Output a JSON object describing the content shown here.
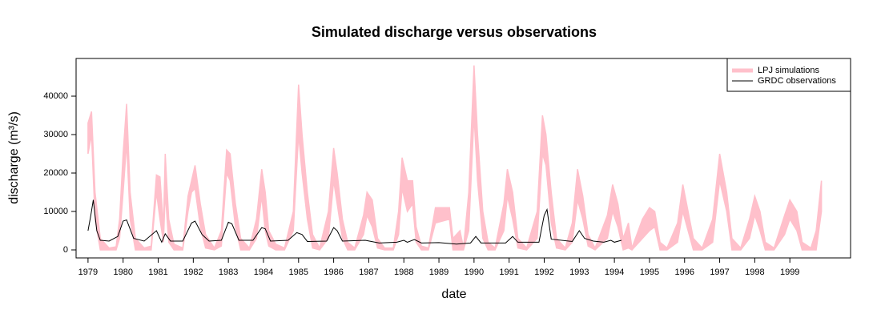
{
  "chart_data": {
    "type": "band_line",
    "title": "Simulated discharge versus observations",
    "xlabel": "date",
    "ylabel": "discharge (m³/s)",
    "xlim": [
      1978.66,
      2000.73
    ],
    "ylim": [
      -2083,
      49800
    ],
    "xticks": [
      1979,
      1980,
      1981,
      1982,
      1983,
      1984,
      1985,
      1986,
      1987,
      1988,
      1989,
      1990,
      1991,
      1992,
      1993,
      1994,
      1995,
      1996,
      1997,
      1998,
      1999
    ],
    "yticks": [
      0,
      10000,
      20000,
      30000,
      40000
    ],
    "legend": "top-right",
    "series": [
      {
        "name": "LPJ simulations",
        "color": "#ffc0cb",
        "x": [
          1979.0,
          1979.1,
          1979.2,
          1979.35,
          1979.6,
          1979.8,
          1979.9,
          1980.0,
          1980.1,
          1980.2,
          1980.35,
          1980.6,
          1980.8,
          1980.95,
          1981.05,
          1981.15,
          1981.2,
          1981.3,
          1981.45,
          1981.7,
          1981.85,
          1981.95,
          1982.05,
          1982.2,
          1982.35,
          1982.6,
          1982.8,
          1982.95,
          1983.05,
          1983.2,
          1983.35,
          1983.6,
          1983.8,
          1983.95,
          1984.05,
          1984.15,
          1984.35,
          1984.6,
          1984.85,
          1985.0,
          1985.1,
          1985.25,
          1985.4,
          1985.6,
          1985.85,
          1986.0,
          1986.1,
          1986.25,
          1986.4,
          1986.6,
          1986.85,
          1986.95,
          1987.1,
          1987.25,
          1987.45,
          1987.7,
          1987.85,
          1987.95,
          1988.1,
          1988.25,
          1988.35,
          1988.5,
          1988.7,
          1988.9,
          1989.3,
          1989.4,
          1989.6,
          1989.7,
          1989.85,
          1990.0,
          1990.1,
          1990.25,
          1990.4,
          1990.6,
          1990.85,
          1990.95,
          1991.1,
          1991.25,
          1991.5,
          1991.8,
          1991.95,
          1992.05,
          1992.2,
          1992.35,
          1992.6,
          1992.8,
          1992.95,
          1993.1,
          1993.25,
          1993.45,
          1993.8,
          1993.95,
          1994.1,
          1994.25,
          1994.4,
          1994.5,
          1994.8,
          1995.0,
          1995.15,
          1995.3,
          1995.5,
          1995.8,
          1995.95,
          1996.1,
          1996.25,
          1996.5,
          1996.8,
          1997.0,
          1997.2,
          1997.35,
          1997.6,
          1997.85,
          1998.0,
          1998.15,
          1998.3,
          1998.55,
          1998.85,
          1999.0,
          1999.2,
          1999.35,
          1999.6,
          1999.75,
          1999.9
        ],
        "values": [
          33000,
          36000,
          15000,
          3000,
          500,
          800,
          8000,
          25000,
          38000,
          15000,
          3000,
          500,
          1000,
          19500,
          19000,
          6000,
          25000,
          8000,
          1500,
          500,
          14000,
          18000,
          22000,
          12000,
          4000,
          500,
          5000,
          26000,
          25000,
          12000,
          3000,
          500,
          8000,
          21000,
          15000,
          5000,
          1500,
          500,
          10000,
          43000,
          30000,
          15000,
          4000,
          500,
          10000,
          26500,
          20000,
          8000,
          2000,
          500,
          9000,
          15000,
          13000,
          3000,
          500,
          500,
          10000,
          24000,
          18000,
          18000,
          6000,
          1000,
          500,
          11000,
          11000,
          3000,
          5000,
          500,
          15000,
          48000,
          30000,
          10000,
          2000,
          500,
          12000,
          21000,
          15000,
          3000,
          500,
          10000,
          35000,
          30000,
          15000,
          3000,
          500,
          7000,
          21000,
          14000,
          4000,
          500,
          9000,
          17000,
          12000,
          3000,
          7000,
          500,
          8000,
          11000,
          10000,
          2000,
          500,
          7000,
          17000,
          10000,
          3000,
          500,
          8000,
          25000,
          15000,
          3000,
          500,
          8000,
          14000,
          10000,
          2000,
          500,
          9000,
          13000,
          10000,
          2000,
          500,
          5000,
          18000
        ],
        "lower": [
          25000,
          30000,
          8000,
          0,
          0,
          0,
          3000,
          15000,
          28000,
          8000,
          0,
          0,
          0,
          15000,
          8000,
          2000,
          15000,
          2000,
          0,
          0,
          10000,
          15000,
          16000,
          6000,
          500,
          0,
          1000,
          20000,
          18000,
          6000,
          0,
          0,
          3000,
          14000,
          5000,
          1000,
          0,
          0,
          5000,
          30000,
          20000,
          8000,
          500,
          0,
          3000,
          18000,
          12000,
          3000,
          0,
          0,
          4000,
          9000,
          6000,
          500,
          0,
          0,
          4000,
          16000,
          10000,
          12000,
          2000,
          0,
          0,
          7000,
          8000,
          0,
          0,
          0,
          5000,
          35000,
          18000,
          3000,
          0,
          0,
          5000,
          14000,
          8000,
          500,
          0,
          3000,
          25000,
          22000,
          7000,
          500,
          0,
          2000,
          13000,
          8000,
          1000,
          0,
          3000,
          10000,
          6000,
          0,
          500,
          0,
          3000,
          5000,
          6000,
          0,
          0,
          2000,
          10000,
          5000,
          0,
          0,
          2000,
          18000,
          10000,
          0,
          0,
          3000,
          9000,
          5000,
          0,
          0,
          4000,
          8000,
          5000,
          0,
          0,
          0,
          10000
        ]
      },
      {
        "name": "GRDC observations",
        "color": "#000000",
        "x": [
          1979.0,
          1979.08,
          1979.15,
          1979.25,
          1979.35,
          1979.6,
          1979.85,
          1980.0,
          1980.1,
          1980.3,
          1980.6,
          1980.95,
          1981.1,
          1981.2,
          1981.35,
          1981.7,
          1981.95,
          1982.05,
          1982.25,
          1982.45,
          1982.8,
          1983.0,
          1983.1,
          1983.3,
          1983.7,
          1983.95,
          1984.05,
          1984.2,
          1984.7,
          1984.95,
          1985.1,
          1985.25,
          1985.8,
          1986.0,
          1986.1,
          1986.25,
          1986.9,
          1987.3,
          1987.8,
          1988.0,
          1988.1,
          1988.3,
          1988.5,
          1989.0,
          1989.5,
          1989.9,
          1990.05,
          1990.2,
          1990.9,
          1991.1,
          1991.25,
          1991.85,
          1992.0,
          1992.08,
          1992.2,
          1992.8,
          1993.0,
          1993.15,
          1993.4,
          1993.7,
          1993.9,
          1994.0,
          1994.2
        ],
        "values": [
          5000,
          9000,
          13000,
          5000,
          2500,
          2300,
          3500,
          7500,
          7800,
          3000,
          2300,
          5000,
          2000,
          4200,
          2300,
          2300,
          7000,
          7500,
          4000,
          2300,
          2500,
          7200,
          6800,
          2500,
          2500,
          5800,
          5500,
          2300,
          2500,
          4500,
          4000,
          2200,
          2300,
          5800,
          5000,
          2300,
          2500,
          1800,
          2000,
          2500,
          2000,
          2700,
          1800,
          1900,
          1500,
          1800,
          3500,
          1800,
          1800,
          3500,
          2000,
          2000,
          9000,
          10500,
          2800,
          2200,
          5000,
          3000,
          2300,
          2000,
          2500,
          2000,
          2500
        ]
      }
    ]
  }
}
